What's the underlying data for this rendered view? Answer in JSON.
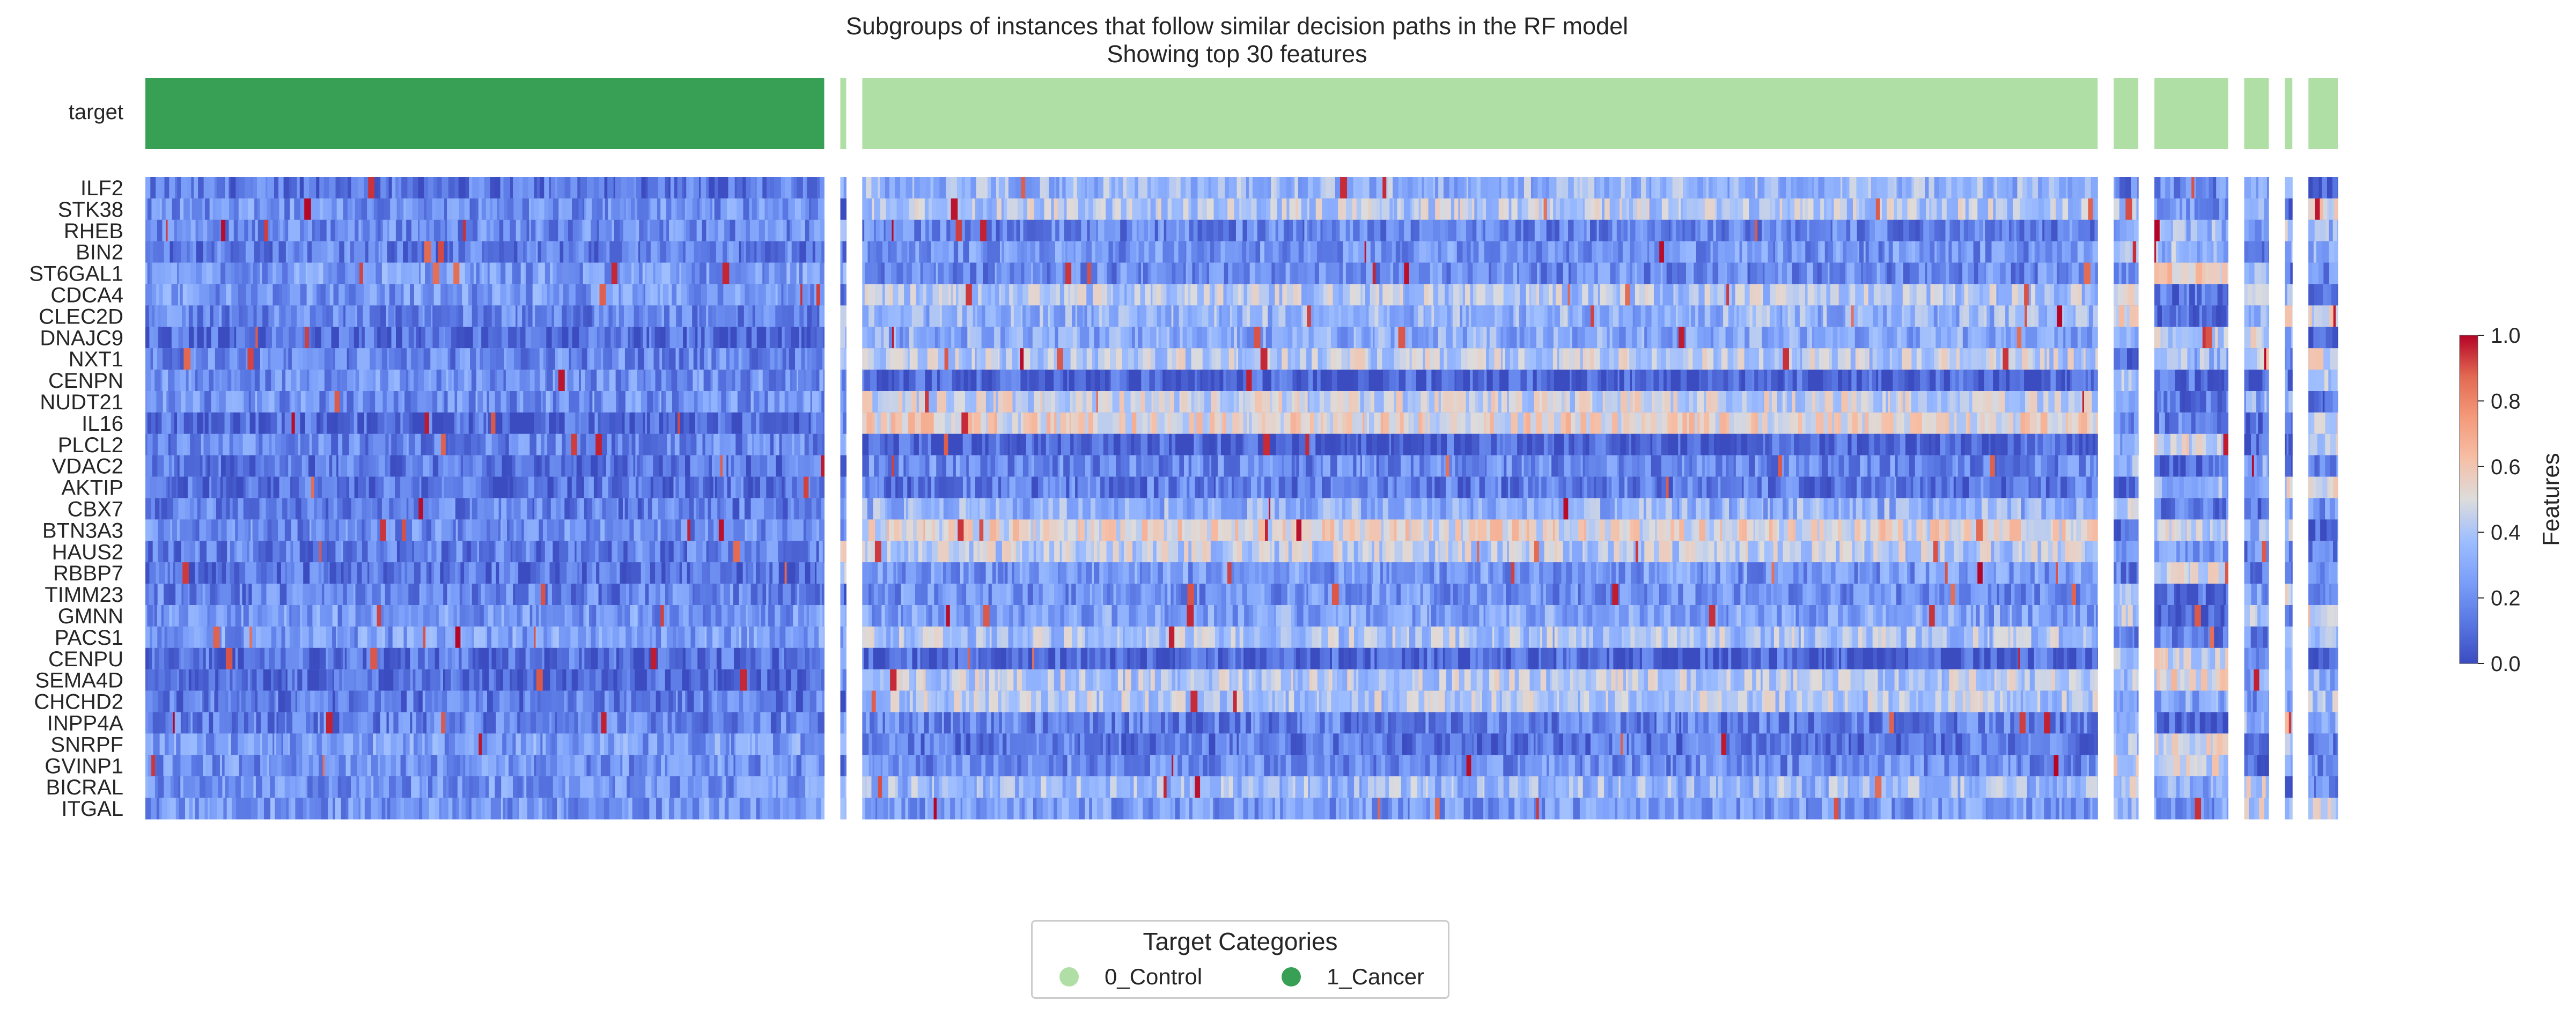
{
  "chart_data": {
    "type": "heatmap",
    "title": "Subgroups of instances that follow similar decision paths in the RF model",
    "subtitle": "Showing top 30 features",
    "target_row_label": "target",
    "features": [
      "ILF2",
      "STK38",
      "RHEB",
      "BIN2",
      "ST6GAL1",
      "CDCA4",
      "CLEC2D",
      "DNAJC9",
      "NXT1",
      "CENPN",
      "NUDT21",
      "IL16",
      "PLCL2",
      "VDAC2",
      "AKTIP",
      "CBX7",
      "BTN3A3",
      "HAUS2",
      "RBBP7",
      "TIMM23",
      "GMNN",
      "PACS1",
      "CENPU",
      "SEMA4D",
      "CHCHD2",
      "INPP4A",
      "SNRPF",
      "GVINP1",
      "BICRAL",
      "ITGAL"
    ],
    "subgroups": [
      {
        "target": "1_Cancer",
        "relative_width": 1271
      },
      {
        "target": "0_Control",
        "relative_width": 11
      },
      {
        "target": "0_Control",
        "relative_width": 2313
      },
      {
        "target": "0_Control",
        "relative_width": 46
      },
      {
        "target": "0_Control",
        "relative_width": 138
      },
      {
        "target": "0_Control",
        "relative_width": 46
      },
      {
        "target": "0_Control",
        "relative_width": 14
      },
      {
        "target": "0_Control",
        "relative_width": 55
      }
    ],
    "colorbar": {
      "label": "Features",
      "range": [
        0.0,
        1.0
      ],
      "ticks": [
        "0.0",
        "0.2",
        "0.4",
        "0.6",
        "0.8",
        "1.0"
      ],
      "colormap": "coolwarm"
    },
    "legend": {
      "title": "Target Categories",
      "placement": "bottom-center",
      "entries": [
        {
          "label": "0_Control",
          "color": "#b0dfa6"
        },
        {
          "label": "1_Cancer",
          "color": "#37a055"
        }
      ]
    }
  }
}
